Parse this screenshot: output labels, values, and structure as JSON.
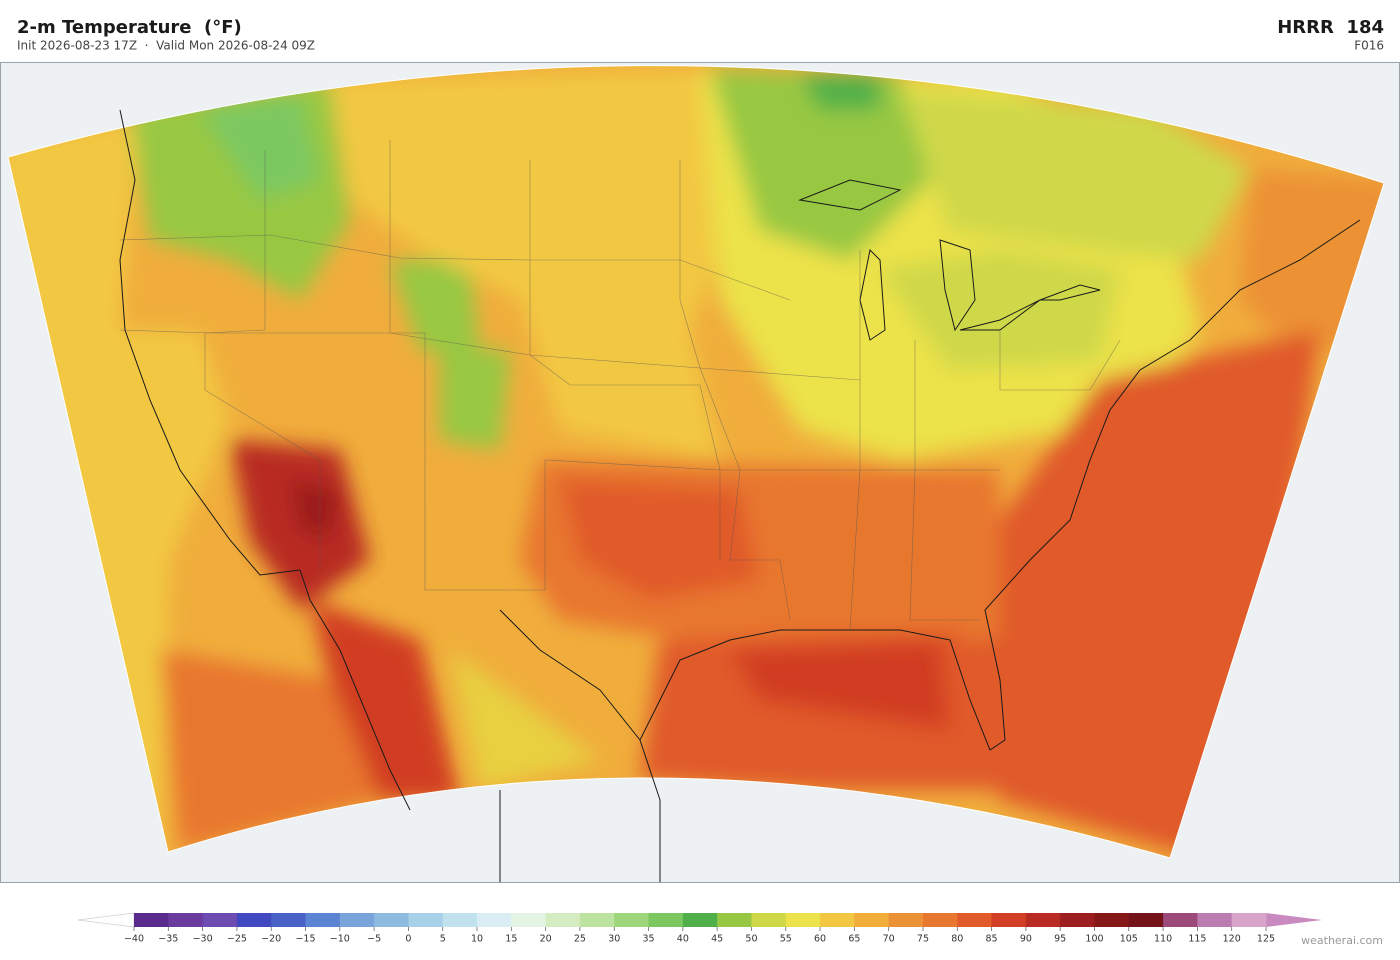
{
  "header": {
    "title": "2-m Temperature  (°F)",
    "subtitle": "Init 2026-08-23 17Z  ·  Valid Mon 2026-08-24 09Z",
    "model": "HRRR  184",
    "forecast_hour": "F016"
  },
  "colorbar": {
    "clim": [
      -40,
      125
    ],
    "ticks": [
      {
        "value": -40,
        "label": "−40"
      },
      {
        "value": -35,
        "label": "−35"
      },
      {
        "value": -30,
        "label": "−30"
      },
      {
        "value": -25,
        "label": "−25"
      },
      {
        "value": -20,
        "label": "−20"
      },
      {
        "value": -15,
        "label": "−15"
      },
      {
        "value": -10,
        "label": "−10"
      },
      {
        "value": -5,
        "label": "−5"
      },
      0,
      5,
      10,
      15,
      20,
      25,
      30,
      35,
      40,
      45,
      50,
      55,
      60,
      65,
      70,
      75,
      80,
      85,
      90,
      95,
      100,
      105,
      110,
      115,
      120,
      125
    ],
    "colors": [
      "#5b2a8e",
      "#6a3a9e",
      "#6e4bb0",
      "#4248c0",
      "#4a62c8",
      "#5b84d4",
      "#78a4da",
      "#8fbae0",
      "#a8d0e8",
      "#c0e2ee",
      "#d8eef2",
      "#e4f4e4",
      "#d4ecc0",
      "#bce3a0",
      "#9ed67c",
      "#7cc860",
      "#4fb04a",
      "#98c843",
      "#cfd848",
      "#ece24a",
      "#f2c843",
      "#f0ad3c",
      "#ec9236",
      "#e8772f",
      "#e05a2a",
      "#d13e24",
      "#b82a22",
      "#9c1e1e",
      "#861818",
      "#74141a",
      "#9c4a7a",
      "#bc7cb0",
      "#d8a4cc"
    ],
    "under_color": "#ffffff",
    "over_color": "#c98ac0"
  },
  "attribution": "weatherai.com"
}
